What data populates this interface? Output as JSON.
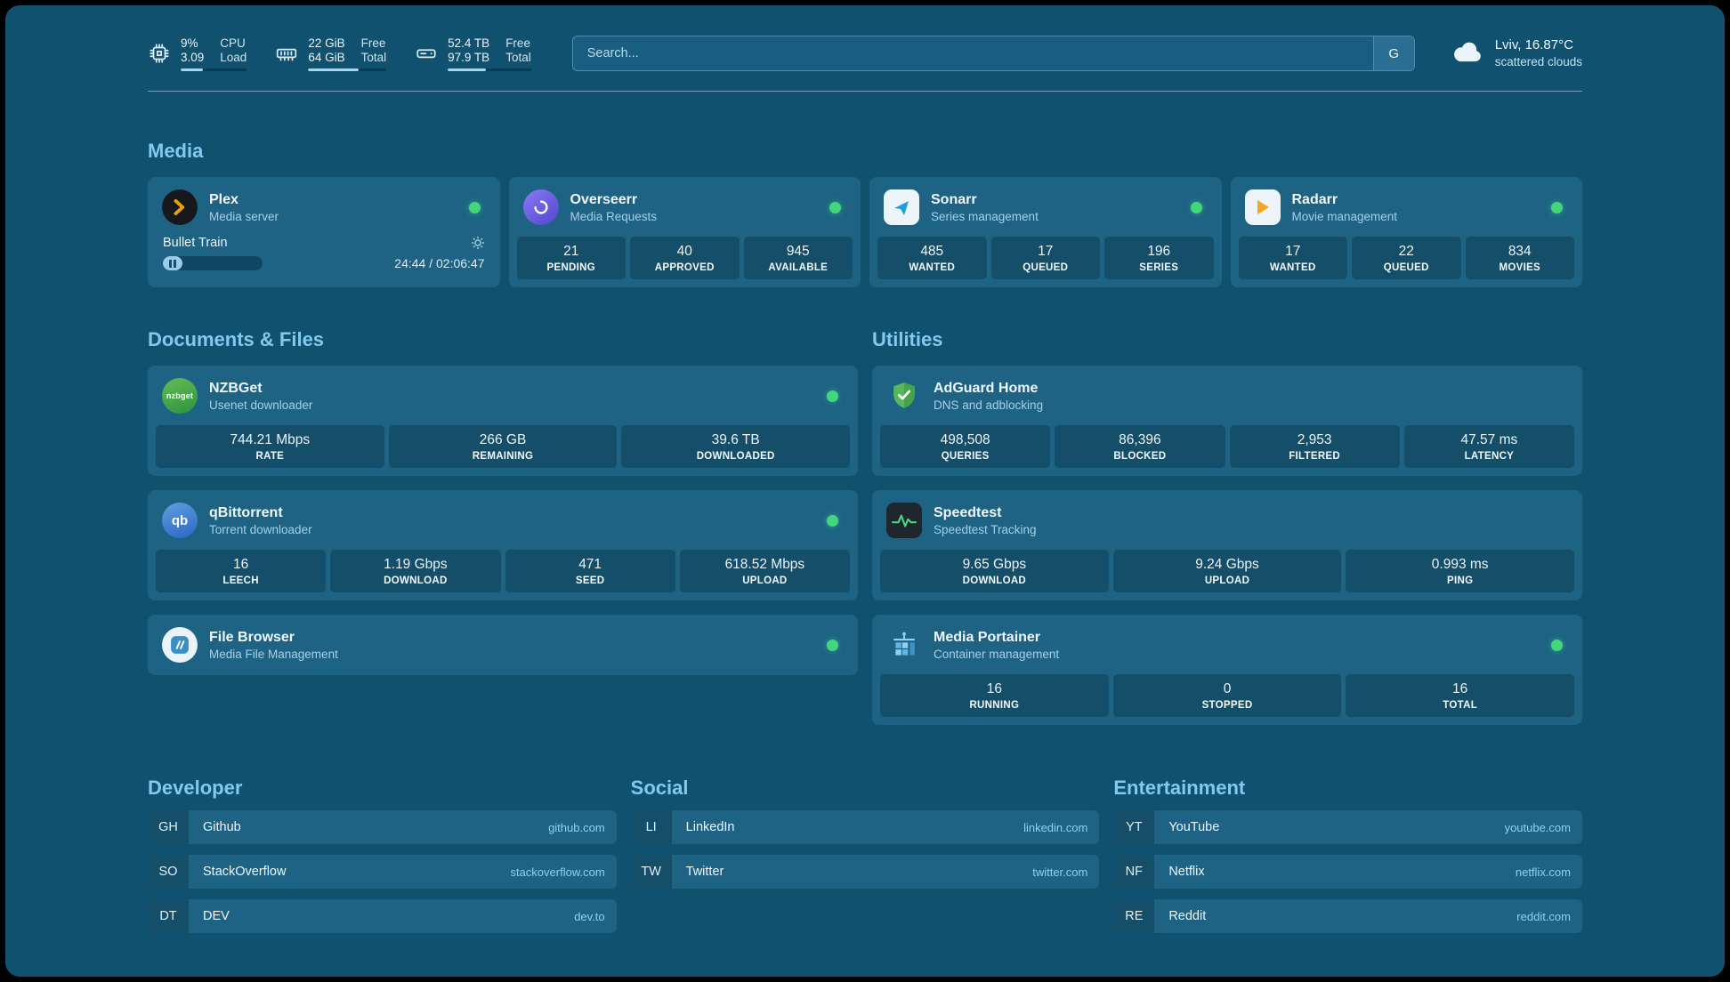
{
  "topbar": {
    "resources": [
      {
        "icon": "cpu-icon",
        "rows": [
          {
            "value": "9%",
            "label": "CPU"
          },
          {
            "value": "3.09",
            "label": "Load"
          }
        ],
        "progress_pct": 33
      },
      {
        "icon": "memory-icon",
        "rows": [
          {
            "value": "22 GiB",
            "label": "Free"
          },
          {
            "value": "64 GiB",
            "label": "Total"
          }
        ],
        "progress_pct": 65
      },
      {
        "icon": "disk-icon",
        "rows": [
          {
            "value": "52.4 TB",
            "label": "Free"
          },
          {
            "value": "97.9 TB",
            "label": "Total"
          }
        ],
        "progress_pct": 46
      }
    ],
    "search": {
      "placeholder": "Search...",
      "provider_label": "G"
    },
    "weather": {
      "icon": "cloud-icon",
      "location_temp": "Lviv, 16.87°C",
      "condition": "scattered clouds"
    }
  },
  "sections": {
    "media": {
      "title": "Media",
      "plex": {
        "icon": "plex-icon",
        "name": "Plex",
        "subtitle": "Media server",
        "now_playing": "Bullet Train",
        "time": "24:44 / 02:06:47",
        "progress_pct": 20
      },
      "overseerr": {
        "icon": "overseerr-icon",
        "name": "Overseerr",
        "subtitle": "Media Requests",
        "stats": [
          {
            "value": "21",
            "label": "PENDING"
          },
          {
            "value": "40",
            "label": "APPROVED"
          },
          {
            "value": "945",
            "label": "AVAILABLE"
          }
        ]
      },
      "sonarr": {
        "icon": "sonarr-icon",
        "name": "Sonarr",
        "subtitle": "Series management",
        "stats": [
          {
            "value": "485",
            "label": "WANTED"
          },
          {
            "value": "17",
            "label": "QUEUED"
          },
          {
            "value": "196",
            "label": "SERIES"
          }
        ]
      },
      "radarr": {
        "icon": "radarr-icon",
        "name": "Radarr",
        "subtitle": "Movie management",
        "stats": [
          {
            "value": "17",
            "label": "WANTED"
          },
          {
            "value": "22",
            "label": "QUEUED"
          },
          {
            "value": "834",
            "label": "MOVIES"
          }
        ]
      }
    },
    "documents": {
      "title": "Documents & Files",
      "nzbget": {
        "icon": "nzbget-icon",
        "name": "NZBGet",
        "subtitle": "Usenet downloader",
        "stats": [
          {
            "value": "744.21 Mbps",
            "label": "RATE"
          },
          {
            "value": "266 GB",
            "label": "REMAINING"
          },
          {
            "value": "39.6 TB",
            "label": "DOWNLOADED"
          }
        ]
      },
      "qbittorrent": {
        "icon": "qbittorrent-icon",
        "name": "qBittorrent",
        "subtitle": "Torrent downloader",
        "stats": [
          {
            "value": "16",
            "label": "LEECH"
          },
          {
            "value": "1.19 Gbps",
            "label": "DOWNLOAD"
          },
          {
            "value": "471",
            "label": "SEED"
          },
          {
            "value": "618.52 Mbps",
            "label": "UPLOAD"
          }
        ]
      },
      "filebrowser": {
        "icon": "filebrowser-icon",
        "name": "File Browser",
        "subtitle": "Media File Management"
      }
    },
    "utilities": {
      "title": "Utilities",
      "adguard": {
        "icon": "adguard-shield-icon",
        "name": "AdGuard Home",
        "subtitle": "DNS and adblocking",
        "stats": [
          {
            "value": "498,508",
            "label": "QUERIES"
          },
          {
            "value": "86,396",
            "label": "BLOCKED"
          },
          {
            "value": "2,953",
            "label": "FILTERED"
          },
          {
            "value": "47.57 ms",
            "label": "LATENCY"
          }
        ]
      },
      "speedtest": {
        "icon": "speedtest-icon",
        "name": "Speedtest",
        "subtitle": "Speedtest Tracking",
        "stats": [
          {
            "value": "9.65 Gbps",
            "label": "DOWNLOAD"
          },
          {
            "value": "9.24 Gbps",
            "label": "UPLOAD"
          },
          {
            "value": "0.993 ms",
            "label": "PING"
          }
        ]
      },
      "portainer": {
        "icon": "portainer-icon",
        "name": "Media Portainer",
        "subtitle": "Container management",
        "stats": [
          {
            "value": "16",
            "label": "RUNNING"
          },
          {
            "value": "0",
            "label": "STOPPED"
          },
          {
            "value": "16",
            "label": "TOTAL"
          }
        ]
      }
    },
    "bookmarks": {
      "developer": {
        "title": "Developer",
        "items": [
          {
            "abbr": "GH",
            "name": "Github",
            "domain": "github.com"
          },
          {
            "abbr": "SO",
            "name": "StackOverflow",
            "domain": "stackoverflow.com"
          },
          {
            "abbr": "DT",
            "name": "DEV",
            "domain": "dev.to"
          }
        ]
      },
      "social": {
        "title": "Social",
        "items": [
          {
            "abbr": "LI",
            "name": "LinkedIn",
            "domain": "linkedin.com"
          },
          {
            "abbr": "TW",
            "name": "Twitter",
            "domain": "twitter.com"
          }
        ]
      },
      "entertainment": {
        "title": "Entertainment",
        "items": [
          {
            "abbr": "YT",
            "name": "YouTube",
            "domain": "youtube.com"
          },
          {
            "abbr": "NF",
            "name": "Netflix",
            "domain": "netflix.com"
          },
          {
            "abbr": "RE",
            "name": "Reddit",
            "domain": "reddit.com"
          }
        ]
      }
    }
  },
  "colors": {
    "accent_green": "#42d77d",
    "heading_blue": "#83c9ef",
    "plex_orange": "#e5a00d",
    "background": "#0f516f",
    "card": "#1e6384"
  }
}
